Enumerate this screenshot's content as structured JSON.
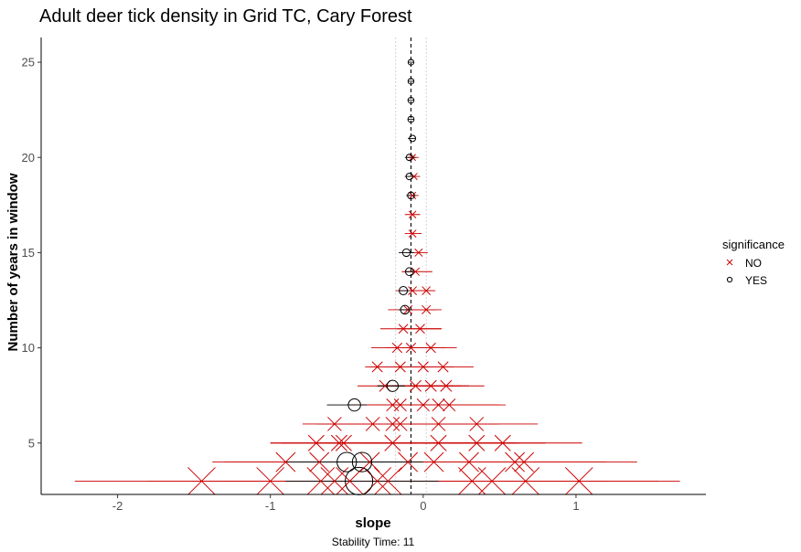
{
  "chart_data": {
    "type": "scatter",
    "title": "Adult deer tick density in Grid TC, Cary Forest",
    "xlabel": "slope",
    "ylabel": "Number of years in window",
    "caption": "Stability Time: 11",
    "xlim": [
      -2.5,
      1.85
    ],
    "ylim": [
      2.3,
      26.3
    ],
    "xticks": [
      -2,
      -1,
      0,
      1
    ],
    "xtick_labels": [
      "-2",
      "-1",
      "0",
      "1"
    ],
    "yticks": [
      5,
      10,
      15,
      20,
      25
    ],
    "ytick_labels": [
      "5",
      "10",
      "15",
      "20",
      "25"
    ],
    "reference_line_x": -0.08,
    "band_lines_x": [
      -0.18,
      0.02
    ],
    "grid": false,
    "legend": {
      "title": "significance",
      "position": "right",
      "entries": [
        {
          "label": "NO",
          "shape": "x",
          "color": "#cc0000"
        },
        {
          "label": "YES",
          "shape": "circle",
          "color": "#000000"
        }
      ]
    },
    "colors": {
      "NO": "#cc0000",
      "YES": "#000000"
    },
    "series": [
      {
        "name": "NO",
        "points": [
          {
            "y": 3,
            "x": -1.45,
            "lo": -2.28,
            "hi": -0.62
          },
          {
            "y": 3,
            "x": -1.0,
            "lo": -1.8,
            "hi": -0.2
          },
          {
            "y": 3,
            "x": -0.67,
            "lo": -1.5,
            "hi": 0.15
          },
          {
            "y": 3,
            "x": -0.58,
            "lo": -1.3,
            "hi": 0.14
          },
          {
            "y": 3,
            "x": -0.48,
            "lo": -1.2,
            "hi": 0.24
          },
          {
            "y": 3,
            "x": -0.3,
            "lo": -1.0,
            "hi": 0.4
          },
          {
            "y": 3,
            "x": -0.23,
            "lo": -0.9,
            "hi": 0.44
          },
          {
            "y": 3,
            "x": 0.32,
            "lo": -0.4,
            "hi": 1.04
          },
          {
            "y": 3,
            "x": 0.45,
            "lo": -0.3,
            "hi": 1.2
          },
          {
            "y": 3,
            "x": 0.67,
            "lo": -0.2,
            "hi": 1.54
          },
          {
            "y": 3,
            "x": 1.02,
            "lo": 0.37,
            "hi": 1.68
          },
          {
            "y": 4,
            "x": -0.9,
            "lo": -1.38,
            "hi": 0.88
          },
          {
            "y": 4,
            "x": -0.68,
            "lo": -1.3,
            "hi": -0.06
          },
          {
            "y": 4,
            "x": -0.35,
            "lo": -1.0,
            "hi": 0.3
          },
          {
            "y": 4,
            "x": -0.1,
            "lo": -0.8,
            "hi": 0.6
          },
          {
            "y": 4,
            "x": 0.07,
            "lo": -0.6,
            "hi": 0.74
          },
          {
            "y": 4,
            "x": 0.3,
            "lo": -0.4,
            "hi": 1.0
          },
          {
            "y": 4,
            "x": 0.6,
            "lo": -0.2,
            "hi": 1.4
          },
          {
            "y": 4,
            "x": 0.66,
            "lo": 0.1,
            "hi": 1.2
          },
          {
            "y": 5,
            "x": -0.7,
            "lo": -0.93,
            "hi": 0.63
          },
          {
            "y": 5,
            "x": -0.55,
            "lo": -1.0,
            "hi": -0.1
          },
          {
            "y": 5,
            "x": -0.52,
            "lo": -1.0,
            "hi": -0.04
          },
          {
            "y": 5,
            "x": -0.2,
            "lo": -0.7,
            "hi": 0.3
          },
          {
            "y": 5,
            "x": 0.1,
            "lo": -0.4,
            "hi": 0.6
          },
          {
            "y": 5,
            "x": 0.35,
            "lo": -0.1,
            "hi": 0.8
          },
          {
            "y": 5,
            "x": 0.52,
            "lo": 0.0,
            "hi": 1.04
          },
          {
            "y": 6,
            "x": -0.58,
            "lo": -0.79,
            "hi": 0.48
          },
          {
            "y": 6,
            "x": -0.33,
            "lo": -0.7,
            "hi": 0.04
          },
          {
            "y": 6,
            "x": -0.2,
            "lo": -0.6,
            "hi": 0.2
          },
          {
            "y": 6,
            "x": -0.15,
            "lo": -0.5,
            "hi": 0.2
          },
          {
            "y": 6,
            "x": 0.1,
            "lo": -0.3,
            "hi": 0.5
          },
          {
            "y": 6,
            "x": 0.35,
            "lo": -0.05,
            "hi": 0.75
          },
          {
            "y": 7,
            "x": -0.2,
            "lo": -0.5,
            "hi": 0.1
          },
          {
            "y": 7,
            "x": -0.15,
            "lo": -0.5,
            "hi": 0.2
          },
          {
            "y": 7,
            "x": 0.0,
            "lo": -0.4,
            "hi": 0.31
          },
          {
            "y": 7,
            "x": 0.1,
            "lo": -0.3,
            "hi": 0.5
          },
          {
            "y": 7,
            "x": 0.17,
            "lo": -0.2,
            "hi": 0.54
          },
          {
            "y": 8,
            "x": -0.25,
            "lo": -0.43,
            "hi": 0.25
          },
          {
            "y": 8,
            "x": -0.05,
            "lo": -0.3,
            "hi": 0.2
          },
          {
            "y": 8,
            "x": 0.05,
            "lo": -0.2,
            "hi": 0.3
          },
          {
            "y": 8,
            "x": 0.15,
            "lo": -0.1,
            "hi": 0.4
          },
          {
            "y": 9,
            "x": -0.3,
            "lo": -0.38,
            "hi": 0.2
          },
          {
            "y": 9,
            "x": -0.15,
            "lo": -0.35,
            "hi": 0.05
          },
          {
            "y": 9,
            "x": 0.0,
            "lo": -0.2,
            "hi": 0.2
          },
          {
            "y": 9,
            "x": 0.13,
            "lo": -0.07,
            "hi": 0.33
          },
          {
            "y": 10,
            "x": -0.17,
            "lo": -0.34,
            "hi": 0.15
          },
          {
            "y": 10,
            "x": -0.08,
            "lo": -0.25,
            "hi": 0.09
          },
          {
            "y": 10,
            "x": 0.05,
            "lo": -0.12,
            "hi": 0.22
          },
          {
            "y": 11,
            "x": -0.13,
            "lo": -0.28,
            "hi": 0.12
          },
          {
            "y": 11,
            "x": -0.02,
            "lo": -0.17,
            "hi": 0.12
          },
          {
            "y": 12,
            "x": -0.1,
            "lo": -0.23,
            "hi": 0.12
          },
          {
            "y": 12,
            "x": 0.02,
            "lo": -0.1,
            "hi": 0.08
          },
          {
            "y": 13,
            "x": -0.07,
            "lo": -0.18,
            "hi": 0.08
          },
          {
            "y": 13,
            "x": 0.02,
            "lo": -0.06,
            "hi": 0.07
          },
          {
            "y": 14,
            "x": -0.05,
            "lo": -0.14,
            "hi": 0.06
          },
          {
            "y": 15,
            "x": -0.03,
            "lo": -0.1,
            "hi": 0.03
          },
          {
            "y": 16,
            "x": -0.07,
            "lo": -0.12,
            "hi": -0.01
          },
          {
            "y": 17,
            "x": -0.07,
            "lo": -0.12,
            "hi": -0.02
          },
          {
            "y": 18,
            "x": -0.07,
            "lo": -0.11,
            "hi": -0.03
          },
          {
            "y": 19,
            "x": -0.06,
            "lo": -0.1,
            "hi": -0.02
          },
          {
            "y": 20,
            "x": -0.07,
            "lo": -0.1,
            "hi": -0.03
          }
        ]
      },
      {
        "name": "YES",
        "points": [
          {
            "y": 3,
            "x": -0.42,
            "lo": -0.9,
            "hi": 0.1
          },
          {
            "y": 4,
            "x": -0.5,
            "lo": -0.9,
            "hi": -0.1
          },
          {
            "y": 4,
            "x": -0.4,
            "lo": -0.8,
            "hi": 0.0
          },
          {
            "y": 7,
            "x": -0.45,
            "lo": -0.63,
            "hi": -0.37
          },
          {
            "y": 8,
            "x": -0.2,
            "lo": -0.3,
            "hi": -0.12
          },
          {
            "y": 12,
            "x": -0.12,
            "lo": -0.16,
            "hi": -0.07
          },
          {
            "y": 13,
            "x": -0.13,
            "lo": -0.16,
            "hi": -0.09
          },
          {
            "y": 14,
            "x": -0.09,
            "lo": -0.12,
            "hi": -0.06
          },
          {
            "y": 15,
            "x": -0.11,
            "lo": -0.16,
            "hi": -0.06
          },
          {
            "y": 18,
            "x": -0.08,
            "lo": -0.11,
            "hi": -0.05
          },
          {
            "y": 19,
            "x": -0.09,
            "lo": -0.12,
            "hi": -0.05
          },
          {
            "y": 20,
            "x": -0.09,
            "lo": -0.12,
            "hi": -0.05
          },
          {
            "y": 21,
            "x": -0.07,
            "lo": -0.1,
            "hi": -0.05
          },
          {
            "y": 22,
            "x": -0.08,
            "lo": -0.1,
            "hi": -0.06
          },
          {
            "y": 23,
            "x": -0.08,
            "lo": -0.1,
            "hi": -0.06
          },
          {
            "y": 24,
            "x": -0.08,
            "lo": -0.1,
            "hi": -0.06
          },
          {
            "y": 25,
            "x": -0.08,
            "lo": -0.1,
            "hi": -0.06
          }
        ]
      }
    ]
  }
}
